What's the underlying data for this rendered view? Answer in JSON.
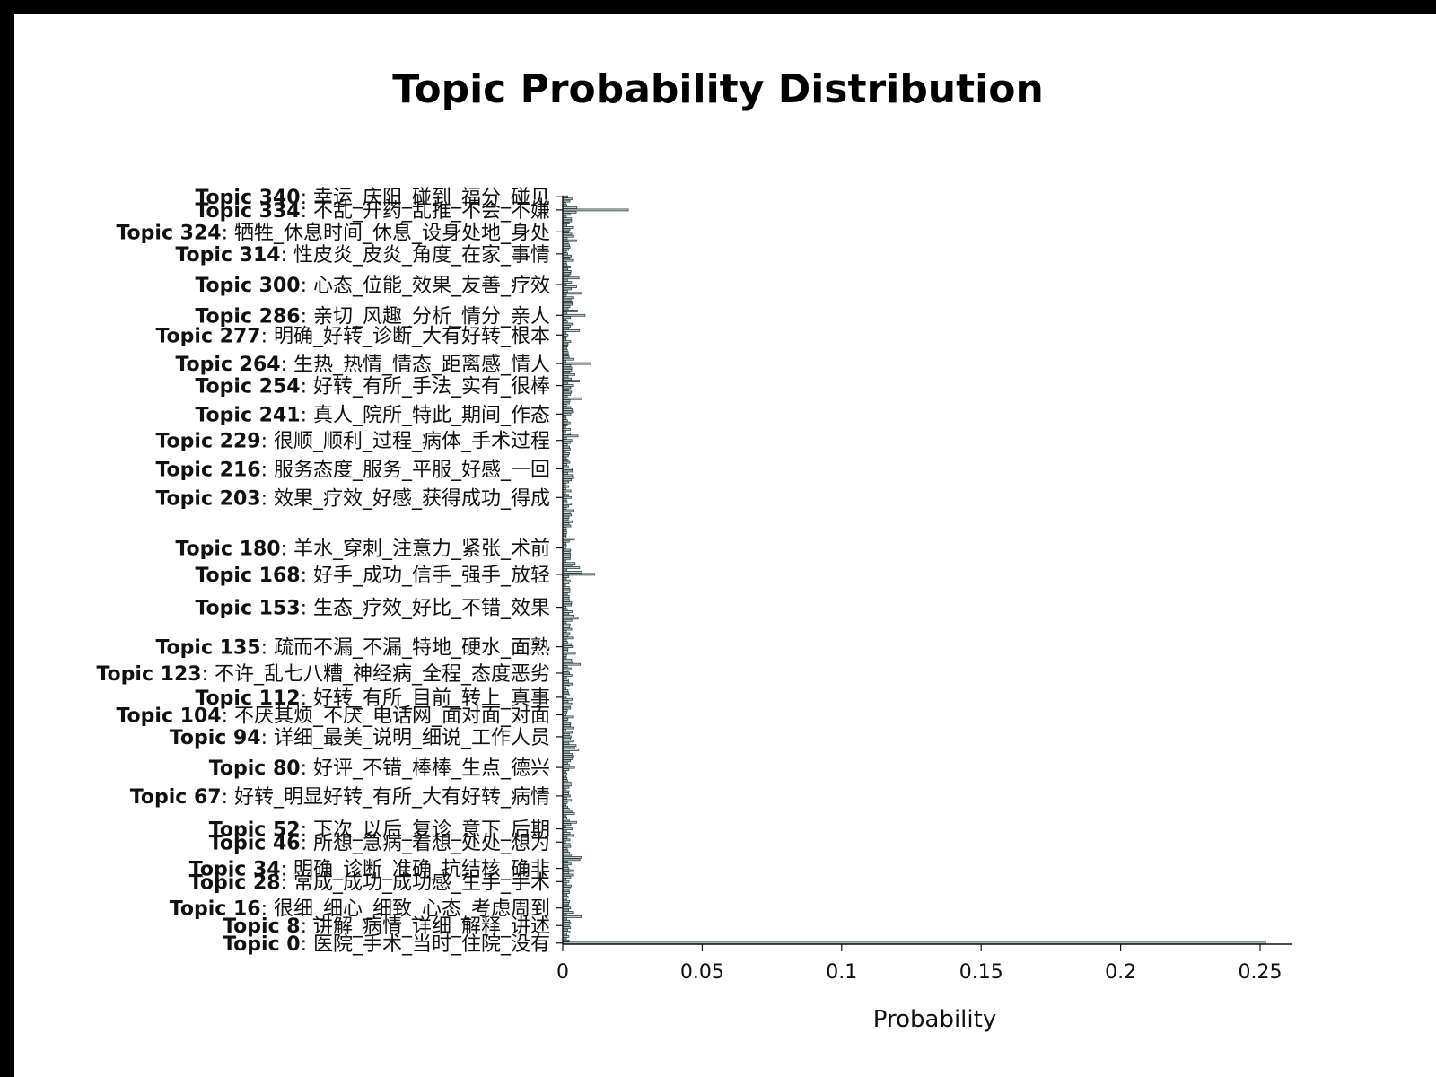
{
  "chart_data": {
    "type": "bar",
    "orientation": "horizontal",
    "title": "Topic Probability Distribution",
    "xlabel": "Probability",
    "ylabel": "",
    "xlim": [
      0,
      0.265
    ],
    "xticks": [
      0,
      0.05,
      0.1,
      0.15,
      0.2,
      0.25
    ],
    "xtick_labels": [
      "0",
      "0.05",
      "0.1",
      "0.15",
      "0.2",
      "0.25"
    ],
    "grid": false,
    "bar_color": "#c9d6d6",
    "bar_edge_color": "#2f3f3f",
    "labeled_topics": [
      {
        "id": 340,
        "name": "Topic 340",
        "words": ": 幸运_庆阳_碰到_福分_碰见"
      },
      {
        "id": 334,
        "name": "Topic 334",
        "words": ": 不乱_开药_乱推_不会_不嫌"
      },
      {
        "id": 324,
        "name": "Topic 324",
        "words": ": 牺牲_休息时间_休息_设身处地_身处"
      },
      {
        "id": 314,
        "name": "Topic 314",
        "words": ": 性皮炎_皮炎_角度_在家_事情"
      },
      {
        "id": 300,
        "name": "Topic 300",
        "words": ": 心态_位能_效果_友善_疗效"
      },
      {
        "id": 286,
        "name": "Topic 286",
        "words": ": 亲切_风趣_分析_情分_亲人"
      },
      {
        "id": 277,
        "name": "Topic 277",
        "words": ": 明确_好转_诊断_大有好转_根本"
      },
      {
        "id": 264,
        "name": "Topic 264",
        "words": ": 生热_热情_情态_距离感_情人"
      },
      {
        "id": 254,
        "name": "Topic 254",
        "words": ": 好转_有所_手法_实有_很棒"
      },
      {
        "id": 241,
        "name": "Topic 241",
        "words": ": 真人_院所_特此_期间_作态"
      },
      {
        "id": 229,
        "name": "Topic 229",
        "words": ": 很顺_顺利_过程_病体_手术过程"
      },
      {
        "id": 216,
        "name": "Topic 216",
        "words": ": 服务态度_服务_平服_好感_一回"
      },
      {
        "id": 203,
        "name": "Topic 203",
        "words": ": 效果_疗效_好感_获得成功_得成"
      },
      {
        "id": 180,
        "name": "Topic 180",
        "words": ": 羊水_穿刺_注意力_紧张_术前"
      },
      {
        "id": 168,
        "name": "Topic 168",
        "words": ": 好手_成功_信手_强手_放轻"
      },
      {
        "id": 153,
        "name": "Topic 153",
        "words": ": 生态_疗效_好比_不错_效果"
      },
      {
        "id": 135,
        "name": "Topic 135",
        "words": ": 疏而不漏_不漏_特地_硬水_面熟"
      },
      {
        "id": 123,
        "name": "Topic 123",
        "words": ": 不许_乱七八糟_神经病_全程_态度恶劣"
      },
      {
        "id": 112,
        "name": "Topic 112",
        "words": ": 好转_有所_目前_转上_真事"
      },
      {
        "id": 104,
        "name": "Topic 104",
        "words": ": 不厌其烦_不厌_电话网_面对面_对面"
      },
      {
        "id": 94,
        "name": "Topic 94",
        "words": ": 详细_最美_说明_细说_工作人员"
      },
      {
        "id": 80,
        "name": "Topic 80",
        "words": ": 好评_不错_棒棒_生点_德兴"
      },
      {
        "id": 67,
        "name": "Topic 67",
        "words": ": 好转_明显好转_有所_大有好转_病情"
      },
      {
        "id": 52,
        "name": "Topic 52",
        "words": ": 下次_以后_复诊_意下_后期"
      },
      {
        "id": 46,
        "name": "Topic 46",
        "words": ": 所想_急病_着想_处处_想为"
      },
      {
        "id": 34,
        "name": "Topic 34",
        "words": ": 明确_诊断_准确_抗结核_确非"
      },
      {
        "id": 28,
        "name": "Topic 28",
        "words": ": 常成_成功_成功感_生手_手术"
      },
      {
        "id": 16,
        "name": "Topic 16",
        "words": ": 很细_细心_细致_心态_考虑周到"
      },
      {
        "id": 8,
        "name": "Topic 8",
        "words": ": 讲解_病情_详细_解释_讲述"
      },
      {
        "id": 0,
        "name": "Topic 0",
        "words": ": 医院_手术_当时_住院_没有"
      }
    ],
    "notable_values": [
      {
        "topic": 0,
        "value": 0.252
      },
      {
        "topic": 334,
        "value": 0.0235
      },
      {
        "topic": 168,
        "value": 0.0115
      },
      {
        "topic": 264,
        "value": 0.01
      },
      {
        "topic": 286,
        "value": 0.008
      }
    ],
    "other_values_range": [
      0.001,
      0.007
    ]
  }
}
